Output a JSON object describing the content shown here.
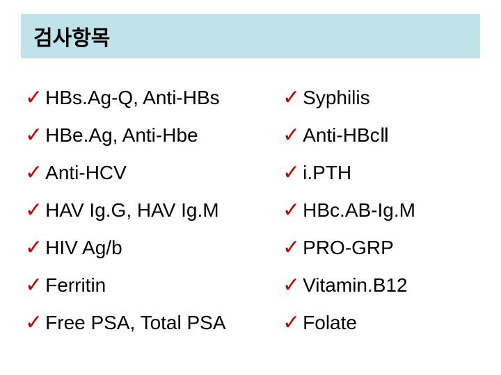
{
  "header": {
    "title": "검사항목"
  },
  "leftColumn": [
    "HBs.Ag-Q, Anti-HBs",
    "HBe.Ag, Anti-Hbe",
    "Anti-HCV",
    "HAV Ig.G, HAV Ig.M",
    "HIV Ag/b",
    "Ferritin",
    "Free PSA, Total PSA"
  ],
  "rightColumn": [
    "Syphilis",
    "Anti-HBcⅡ",
    "i.PTH",
    "HBc.AB-Ig.M",
    "PRO-GRP",
    "Vitamin.B12",
    "Folate"
  ],
  "styling": {
    "header_bg": "#bfe3e9",
    "check_color": "#c00000",
    "text_color": "#000000",
    "body_fontsize": 28,
    "header_fontsize": 30
  }
}
